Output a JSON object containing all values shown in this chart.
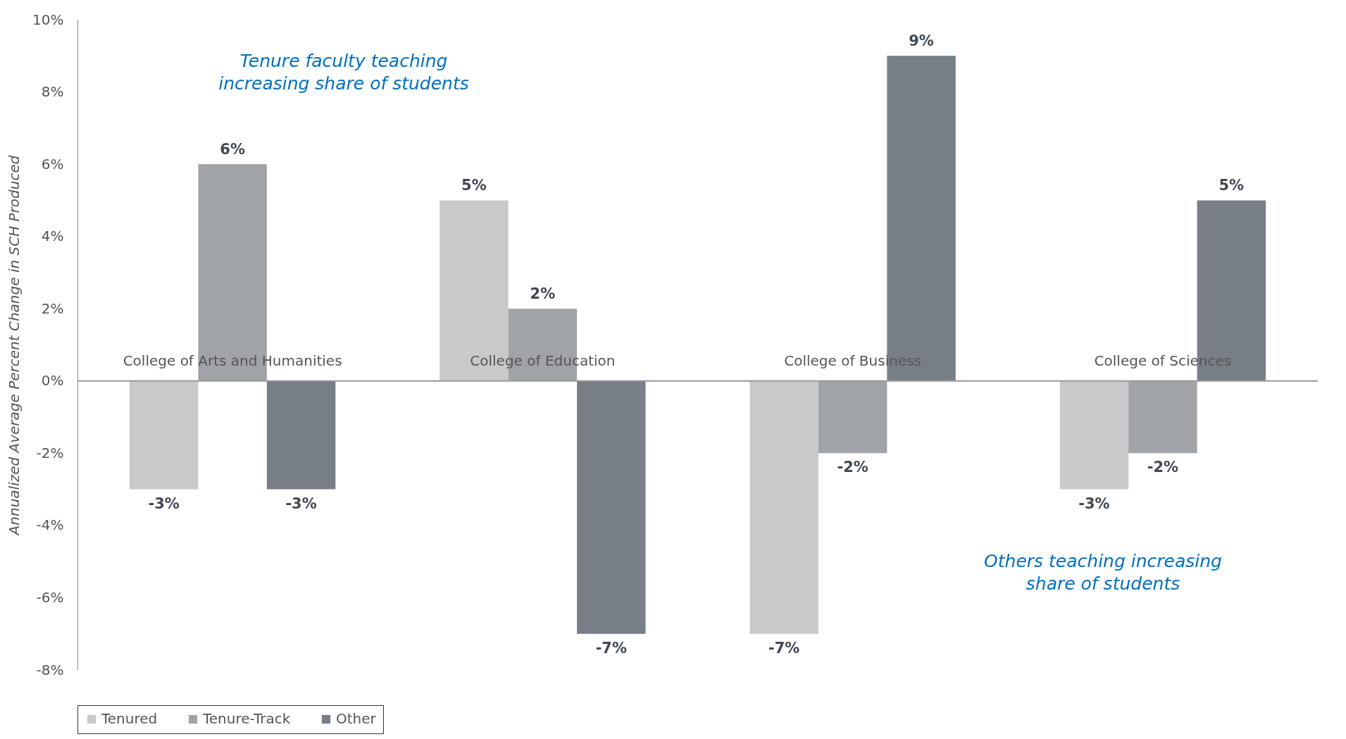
{
  "chart_data": {
    "type": "bar",
    "ylabel": "Annualized Average Percent Change in SCH Produced",
    "categories": [
      "College of Arts and Humanities",
      "College of Education",
      "College of Business",
      "College of Sciences"
    ],
    "series": [
      {
        "name": "Tenured",
        "color": "#c8c9cb",
        "values": [
          -3,
          5,
          -7,
          -3
        ],
        "value_labels": [
          "-3%",
          "5%",
          "-7%",
          "-3%"
        ]
      },
      {
        "name": "Tenure-Track",
        "color": "#a0a3a7",
        "values": [
          6,
          2,
          -2,
          -2
        ],
        "value_labels": [
          "6%",
          "2%",
          "-2%",
          "-2%"
        ]
      },
      {
        "name": "Other",
        "color": "#787e86",
        "values": [
          -3,
          -7,
          9,
          5
        ],
        "value_labels": [
          "-3%",
          "-7%",
          "9%",
          "5%"
        ]
      }
    ],
    "ylim": [
      -8,
      10
    ],
    "yticks": [
      {
        "value": -8,
        "label": "-8%"
      },
      {
        "value": -6,
        "label": "-6%"
      },
      {
        "value": -4,
        "label": "-4%"
      },
      {
        "value": -2,
        "label": "-2%"
      },
      {
        "value": 0,
        "label": "0%"
      },
      {
        "value": 2,
        "label": "2%"
      },
      {
        "value": 4,
        "label": "4%"
      },
      {
        "value": 6,
        "label": "6%"
      },
      {
        "value": 8,
        "label": "8%"
      },
      {
        "value": 10,
        "label": "10%"
      }
    ],
    "annotations": [
      "Tenure faculty teaching\nincreasing share of students",
      "Others teaching increasing\nshare of students"
    ],
    "grid": false,
    "legend": "bottom"
  }
}
